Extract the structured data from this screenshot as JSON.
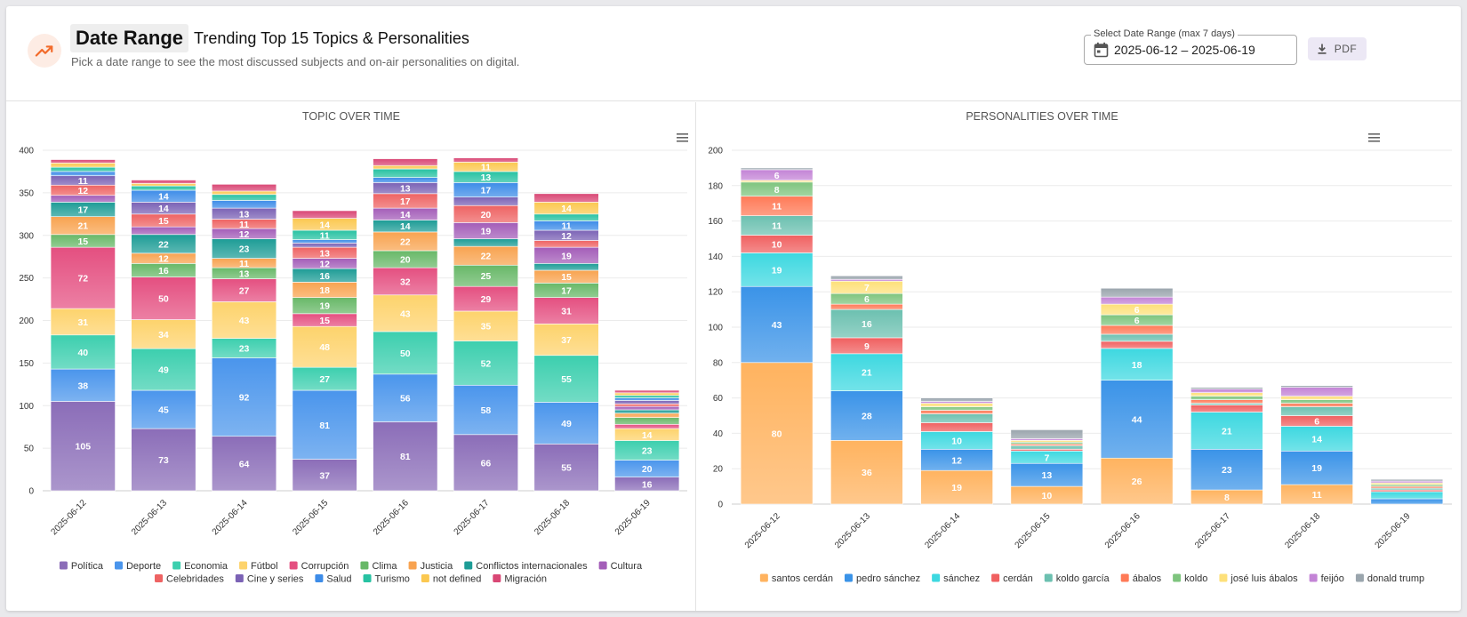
{
  "header": {
    "icon": "trending-up-icon",
    "title": "Date Range",
    "subtitle": "Trending Top 15 Topics & Personalities",
    "description": "Pick a date range to see the most discussed subjects and on-air personalities on digital.",
    "date_picker": {
      "legend": "Select Date Range (max 7 days)",
      "value": "2025-06-12 – 2025-06-19",
      "icon": "calendar-icon"
    },
    "pdf_button": {
      "label": "PDF",
      "icon": "download-icon"
    },
    "accent_color": "#f26b2b"
  },
  "chart_data": [
    {
      "type": "bar",
      "stacked": true,
      "title": "TOPIC OVER TIME",
      "menu_icon": "hamburger-menu-icon",
      "grid": true,
      "legend_position": "bottom",
      "ylim": [
        0,
        400
      ],
      "yticks": [
        0,
        50,
        100,
        150,
        200,
        250,
        300,
        350,
        400
      ],
      "categories": [
        "2025-06-12",
        "2025-06-13",
        "2025-06-14",
        "2025-06-15",
        "2025-06-16",
        "2025-06-17",
        "2025-06-18",
        "2025-06-19"
      ],
      "series": [
        {
          "name": "Política",
          "color": "#8b6db8",
          "values": [
            105,
            73,
            64,
            37,
            81,
            66,
            55,
            16
          ]
        },
        {
          "name": "Deporte",
          "color": "#4a95ec",
          "values": [
            38,
            45,
            92,
            81,
            56,
            58,
            49,
            20
          ]
        },
        {
          "name": "Economia",
          "color": "#3ccfae",
          "values": [
            40,
            49,
            23,
            27,
            50,
            52,
            55,
            23
          ]
        },
        {
          "name": "Fútbol",
          "color": "#fdd36c",
          "values": [
            31,
            34,
            43,
            48,
            43,
            35,
            37,
            14
          ]
        },
        {
          "name": "Corrupción",
          "color": "#e44f80",
          "values": [
            72,
            50,
            27,
            15,
            32,
            29,
            31,
            5
          ]
        },
        {
          "name": "Clima",
          "color": "#68b868",
          "values": [
            15,
            16,
            13,
            19,
            20,
            25,
            17,
            8
          ]
        },
        {
          "name": "Justicia",
          "color": "#f8a350",
          "values": [
            21,
            12,
            11,
            18,
            22,
            22,
            15,
            5
          ]
        },
        {
          "name": "Conflictos internacionales",
          "color": "#1d9c96",
          "values": [
            17,
            22,
            23,
            16,
            14,
            9,
            8,
            4
          ]
        },
        {
          "name": "Cultura",
          "color": "#a35db8",
          "values": [
            8,
            9,
            12,
            12,
            14,
            19,
            19,
            4
          ]
        },
        {
          "name": "Celebridades",
          "color": "#ee6363",
          "values": [
            12,
            15,
            11,
            13,
            17,
            20,
            8,
            3
          ]
        },
        {
          "name": "Cine y series",
          "color": "#7b62b5",
          "values": [
            11,
            14,
            13,
            5,
            13,
            10,
            12,
            4
          ]
        },
        {
          "name": "Salud",
          "color": "#3d8ce8",
          "values": [
            5,
            14,
            9,
            4,
            6,
            17,
            11,
            3
          ]
        },
        {
          "name": "Turismo",
          "color": "#27c2a2",
          "values": [
            5,
            5,
            7,
            11,
            10,
            13,
            8,
            3
          ]
        },
        {
          "name": "not defined",
          "color": "#fbc850",
          "values": [
            5,
            3,
            4,
            14,
            4,
            11,
            14,
            3
          ]
        },
        {
          "name": "Migración",
          "color": "#d94775",
          "values": [
            4,
            4,
            8,
            9,
            8,
            5,
            10,
            3
          ]
        }
      ]
    },
    {
      "type": "bar",
      "stacked": true,
      "title": "PERSONALITIES OVER TIME",
      "menu_icon": "hamburger-menu-icon",
      "grid": true,
      "legend_position": "bottom",
      "ylim": [
        0,
        200
      ],
      "yticks": [
        0,
        20,
        40,
        60,
        80,
        100,
        120,
        140,
        160,
        180,
        200
      ],
      "categories": [
        "2025-06-12",
        "2025-06-13",
        "2025-06-14",
        "2025-06-15",
        "2025-06-16",
        "2025-06-17",
        "2025-06-18",
        "2025-06-19"
      ],
      "series": [
        {
          "name": "santos cerdán",
          "color": "#ffb35f",
          "values": [
            80,
            36,
            19,
            10,
            26,
            8,
            11,
            0
          ]
        },
        {
          "name": "pedro sánchez",
          "color": "#3a93e8",
          "values": [
            43,
            28,
            12,
            13,
            44,
            23,
            19,
            3
          ]
        },
        {
          "name": "sánchez",
          "color": "#3dd8e0",
          "values": [
            19,
            21,
            10,
            7,
            18,
            21,
            14,
            4
          ]
        },
        {
          "name": "cerdán",
          "color": "#f06060",
          "values": [
            10,
            9,
            5,
            1,
            4,
            4,
            6,
            1
          ]
        },
        {
          "name": "koldo garcía",
          "color": "#6cc0b0",
          "values": [
            11,
            16,
            5,
            2,
            4,
            1,
            5,
            1
          ]
        },
        {
          "name": "ábalos",
          "color": "#ff7a57",
          "values": [
            11,
            3,
            2,
            1,
            5,
            2,
            2,
            1
          ]
        },
        {
          "name": "koldo",
          "color": "#7ec47e",
          "values": [
            8,
            6,
            2,
            1,
            6,
            2,
            2,
            1
          ]
        },
        {
          "name": "josé luis ábalos",
          "color": "#fde07a",
          "values": [
            1,
            7,
            2,
            1,
            6,
            2,
            2,
            1
          ]
        },
        {
          "name": "feijóo",
          "color": "#c384d6",
          "values": [
            6,
            1,
            1,
            1,
            4,
            2,
            5,
            1
          ]
        },
        {
          "name": "donald trump",
          "color": "#9aa5ad",
          "values": [
            1,
            2,
            2,
            5,
            5,
            1,
            1,
            1
          ]
        }
      ]
    }
  ]
}
